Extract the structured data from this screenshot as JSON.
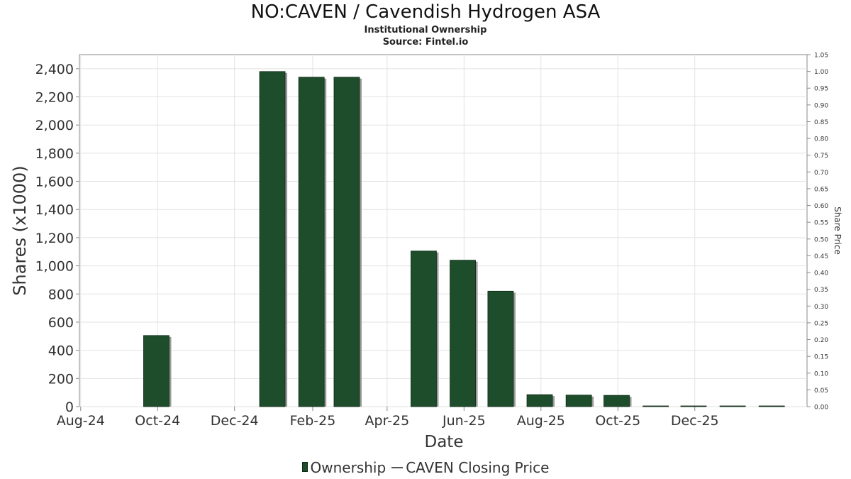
{
  "title": "NO:CAVEN / Cavendish Hydrogen ASA",
  "subtitle": "Institutional Ownership",
  "source": "Source: Fintel.io",
  "legend": {
    "ownership": "Ownership",
    "price": "CAVEN Closing Price"
  },
  "colors": {
    "bar": "#1e4d2b",
    "bar_shadow": "#999999",
    "grid": "#e2e2e2",
    "axis": "#888888"
  },
  "chart_data": {
    "type": "bar",
    "title": "NO:CAVEN / Cavendish Hydrogen ASA",
    "subtitle": "Institutional Ownership",
    "xlabel": "Date",
    "ylabel": "Shares (x1000)",
    "y2label": "Share Price",
    "x_tick_labels": [
      "Aug-24",
      "Oct-24",
      "Dec-24",
      "Feb-25",
      "Apr-25",
      "Jun-25",
      "Aug-25",
      "Oct-25",
      "Dec-25"
    ],
    "y_ticks": [
      0,
      200,
      400,
      600,
      800,
      1000,
      1200,
      1400,
      1600,
      1800,
      2000,
      2200,
      2400
    ],
    "y_tick_labels": [
      "0",
      "200",
      "400",
      "600",
      "800",
      "1,000",
      "1,200",
      "1,400",
      "1,600",
      "1,800",
      "2,000",
      "2,200",
      "2,400"
    ],
    "ylim": [
      0,
      2500
    ],
    "y2_ticks": [
      "0.00",
      "0.05",
      "0.10",
      "0.15",
      "0.20",
      "0.25",
      "0.30",
      "0.35",
      "0.40",
      "0.45",
      "0.50",
      "0.55",
      "0.60",
      "0.65",
      "0.70",
      "0.75",
      "0.80",
      "0.85",
      "0.90",
      "0.95",
      "1.00",
      "1.05"
    ],
    "y2lim": [
      0,
      1.05
    ],
    "grid": true,
    "legend_position": "bottom",
    "series": [
      {
        "name": "Ownership",
        "points": [
          {
            "x": "2024-09-30",
            "y": 505
          },
          {
            "x": "2024-12-31",
            "y": 2380
          },
          {
            "x": "2025-01-31",
            "y": 2340
          },
          {
            "x": "2025-02-28",
            "y": 2340
          },
          {
            "x": "2025-04-30",
            "y": 1105
          },
          {
            "x": "2025-05-31",
            "y": 1040
          },
          {
            "x": "2025-06-30",
            "y": 820
          },
          {
            "x": "2025-07-31",
            "y": 85
          },
          {
            "x": "2025-08-31",
            "y": 82
          },
          {
            "x": "2025-09-30",
            "y": 80
          },
          {
            "x": "2025-10-31",
            "y": 5
          },
          {
            "x": "2025-11-30",
            "y": 5
          },
          {
            "x": "2025-12-31",
            "y": 5
          },
          {
            "x": "2026-01-31",
            "y": 5
          }
        ]
      },
      {
        "name": "CAVEN Closing Price",
        "points": []
      }
    ]
  }
}
